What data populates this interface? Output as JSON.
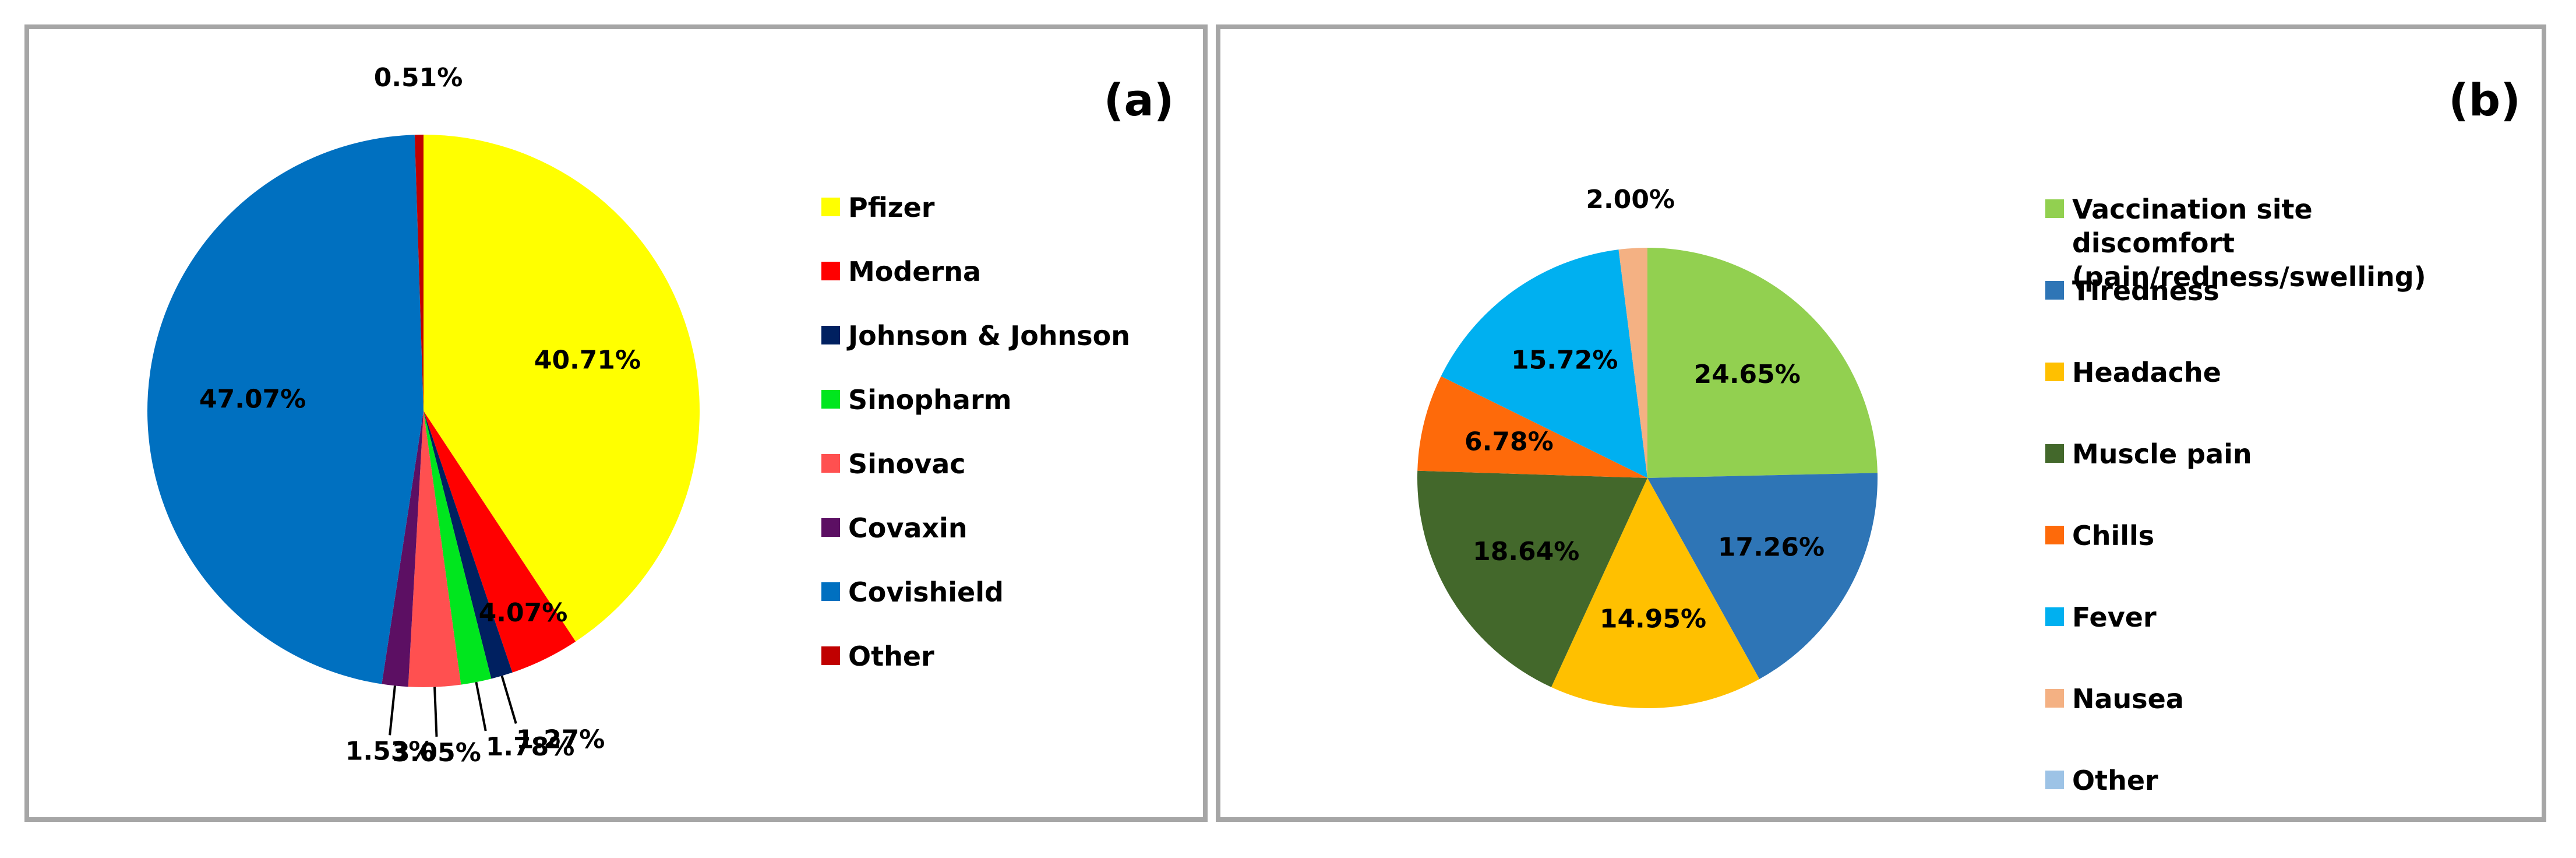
{
  "chart_data": [
    {
      "type": "pie",
      "title": "(a)",
      "legend": "right",
      "categories": [
        "Pfizer",
        "Moderna",
        "Johnson & Johnson",
        "Sinopharm",
        "Sinovac",
        "Covaxin",
        "Covishield",
        "Other"
      ],
      "values": [
        40.71,
        4.07,
        1.27,
        1.78,
        3.05,
        1.53,
        47.07,
        0.51
      ],
      "value_labels": [
        "40.71%",
        "4.07%",
        "1.27%",
        "1.78%",
        "3.05%",
        "1.53%",
        "47.07%",
        "0.51%"
      ],
      "colors": [
        "#ffff00",
        "#ff0000",
        "#002060",
        "#00e61e",
        "#ff5050",
        "#5c0f63",
        "#0070c0",
        "#c00000"
      ]
    },
    {
      "type": "pie",
      "title": "(b)",
      "legend": "right",
      "categories": [
        "Vaccination site discomfort (pain/redness/swelling)",
        "Tiredness",
        "Headache",
        "Muscle pain",
        "Chills",
        "Fever",
        "Nausea",
        "Other"
      ],
      "values": [
        24.65,
        17.26,
        14.95,
        18.64,
        6.78,
        15.72,
        2.0,
        0
      ],
      "value_labels": [
        "24.65%",
        "17.26%",
        "14.95%",
        "18.64%",
        "6.78%",
        "15.72%",
        "2.00%",
        null
      ],
      "colors": [
        "#92d050",
        "#2e75b6",
        "#ffc000",
        "#43682b",
        "#fe6a0a",
        "#00b0f0",
        "#f4b183",
        "#9dc3e6"
      ]
    }
  ]
}
